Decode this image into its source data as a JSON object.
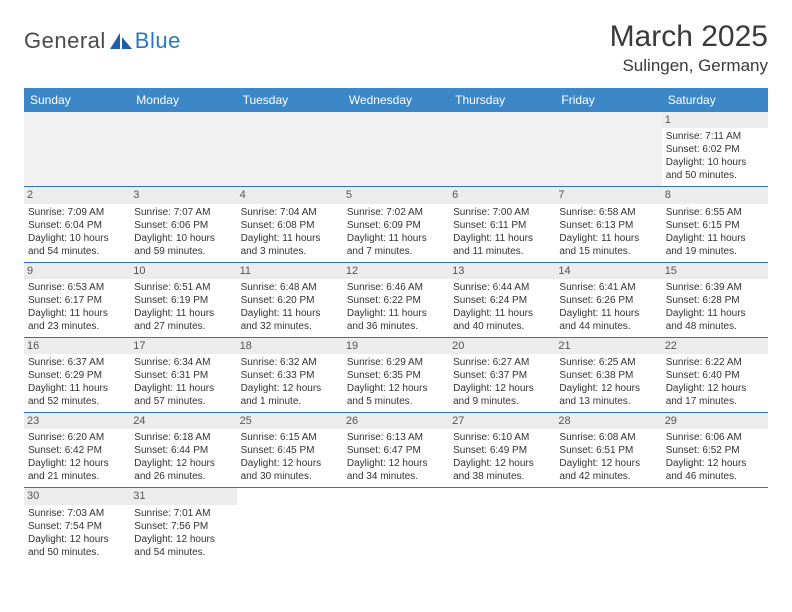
{
  "brand": {
    "part1": "General",
    "part2": "Blue",
    "icon_color": "#1d5fa8"
  },
  "title": "March 2025",
  "location": "Sulingen, Germany",
  "colors": {
    "header_bg": "#3b87c8",
    "header_text": "#ffffff",
    "row_border": "#2a78bf",
    "daynum_bg": "#ececec",
    "prefill_bg": "#f1f1f1",
    "text": "#333333"
  },
  "weekdays": [
    "Sunday",
    "Monday",
    "Tuesday",
    "Wednesday",
    "Thursday",
    "Friday",
    "Saturday"
  ],
  "weeks": [
    [
      null,
      null,
      null,
      null,
      null,
      null,
      {
        "d": "1",
        "sr": "Sunrise: 7:11 AM",
        "ss": "Sunset: 6:02 PM",
        "dl": "Daylight: 10 hours and 50 minutes."
      }
    ],
    [
      {
        "d": "2",
        "sr": "Sunrise: 7:09 AM",
        "ss": "Sunset: 6:04 PM",
        "dl": "Daylight: 10 hours and 54 minutes."
      },
      {
        "d": "3",
        "sr": "Sunrise: 7:07 AM",
        "ss": "Sunset: 6:06 PM",
        "dl": "Daylight: 10 hours and 59 minutes."
      },
      {
        "d": "4",
        "sr": "Sunrise: 7:04 AM",
        "ss": "Sunset: 6:08 PM",
        "dl": "Daylight: 11 hours and 3 minutes."
      },
      {
        "d": "5",
        "sr": "Sunrise: 7:02 AM",
        "ss": "Sunset: 6:09 PM",
        "dl": "Daylight: 11 hours and 7 minutes."
      },
      {
        "d": "6",
        "sr": "Sunrise: 7:00 AM",
        "ss": "Sunset: 6:11 PM",
        "dl": "Daylight: 11 hours and 11 minutes."
      },
      {
        "d": "7",
        "sr": "Sunrise: 6:58 AM",
        "ss": "Sunset: 6:13 PM",
        "dl": "Daylight: 11 hours and 15 minutes."
      },
      {
        "d": "8",
        "sr": "Sunrise: 6:55 AM",
        "ss": "Sunset: 6:15 PM",
        "dl": "Daylight: 11 hours and 19 minutes."
      }
    ],
    [
      {
        "d": "9",
        "sr": "Sunrise: 6:53 AM",
        "ss": "Sunset: 6:17 PM",
        "dl": "Daylight: 11 hours and 23 minutes."
      },
      {
        "d": "10",
        "sr": "Sunrise: 6:51 AM",
        "ss": "Sunset: 6:19 PM",
        "dl": "Daylight: 11 hours and 27 minutes."
      },
      {
        "d": "11",
        "sr": "Sunrise: 6:48 AM",
        "ss": "Sunset: 6:20 PM",
        "dl": "Daylight: 11 hours and 32 minutes."
      },
      {
        "d": "12",
        "sr": "Sunrise: 6:46 AM",
        "ss": "Sunset: 6:22 PM",
        "dl": "Daylight: 11 hours and 36 minutes."
      },
      {
        "d": "13",
        "sr": "Sunrise: 6:44 AM",
        "ss": "Sunset: 6:24 PM",
        "dl": "Daylight: 11 hours and 40 minutes."
      },
      {
        "d": "14",
        "sr": "Sunrise: 6:41 AM",
        "ss": "Sunset: 6:26 PM",
        "dl": "Daylight: 11 hours and 44 minutes."
      },
      {
        "d": "15",
        "sr": "Sunrise: 6:39 AM",
        "ss": "Sunset: 6:28 PM",
        "dl": "Daylight: 11 hours and 48 minutes."
      }
    ],
    [
      {
        "d": "16",
        "sr": "Sunrise: 6:37 AM",
        "ss": "Sunset: 6:29 PM",
        "dl": "Daylight: 11 hours and 52 minutes."
      },
      {
        "d": "17",
        "sr": "Sunrise: 6:34 AM",
        "ss": "Sunset: 6:31 PM",
        "dl": "Daylight: 11 hours and 57 minutes."
      },
      {
        "d": "18",
        "sr": "Sunrise: 6:32 AM",
        "ss": "Sunset: 6:33 PM",
        "dl": "Daylight: 12 hours and 1 minute."
      },
      {
        "d": "19",
        "sr": "Sunrise: 6:29 AM",
        "ss": "Sunset: 6:35 PM",
        "dl": "Daylight: 12 hours and 5 minutes."
      },
      {
        "d": "20",
        "sr": "Sunrise: 6:27 AM",
        "ss": "Sunset: 6:37 PM",
        "dl": "Daylight: 12 hours and 9 minutes."
      },
      {
        "d": "21",
        "sr": "Sunrise: 6:25 AM",
        "ss": "Sunset: 6:38 PM",
        "dl": "Daylight: 12 hours and 13 minutes."
      },
      {
        "d": "22",
        "sr": "Sunrise: 6:22 AM",
        "ss": "Sunset: 6:40 PM",
        "dl": "Daylight: 12 hours and 17 minutes."
      }
    ],
    [
      {
        "d": "23",
        "sr": "Sunrise: 6:20 AM",
        "ss": "Sunset: 6:42 PM",
        "dl": "Daylight: 12 hours and 21 minutes."
      },
      {
        "d": "24",
        "sr": "Sunrise: 6:18 AM",
        "ss": "Sunset: 6:44 PM",
        "dl": "Daylight: 12 hours and 26 minutes."
      },
      {
        "d": "25",
        "sr": "Sunrise: 6:15 AM",
        "ss": "Sunset: 6:45 PM",
        "dl": "Daylight: 12 hours and 30 minutes."
      },
      {
        "d": "26",
        "sr": "Sunrise: 6:13 AM",
        "ss": "Sunset: 6:47 PM",
        "dl": "Daylight: 12 hours and 34 minutes."
      },
      {
        "d": "27",
        "sr": "Sunrise: 6:10 AM",
        "ss": "Sunset: 6:49 PM",
        "dl": "Daylight: 12 hours and 38 minutes."
      },
      {
        "d": "28",
        "sr": "Sunrise: 6:08 AM",
        "ss": "Sunset: 6:51 PM",
        "dl": "Daylight: 12 hours and 42 minutes."
      },
      {
        "d": "29",
        "sr": "Sunrise: 6:06 AM",
        "ss": "Sunset: 6:52 PM",
        "dl": "Daylight: 12 hours and 46 minutes."
      }
    ],
    [
      {
        "d": "30",
        "sr": "Sunrise: 7:03 AM",
        "ss": "Sunset: 7:54 PM",
        "dl": "Daylight: 12 hours and 50 minutes."
      },
      {
        "d": "31",
        "sr": "Sunrise: 7:01 AM",
        "ss": "Sunset: 7:56 PM",
        "dl": "Daylight: 12 hours and 54 minutes."
      },
      null,
      null,
      null,
      null,
      null
    ]
  ]
}
